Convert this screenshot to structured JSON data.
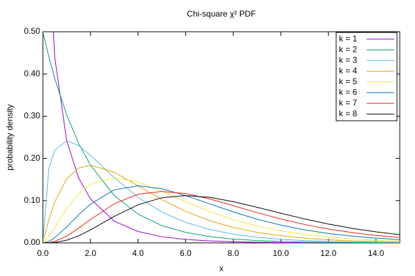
{
  "chart_data": {
    "type": "line",
    "title": "Chi-square χ² PDF",
    "x_label": "x",
    "y_label": "probability density",
    "x": [
      0,
      0.25,
      0.5,
      1,
      1.5,
      2,
      3,
      4,
      5,
      6,
      7,
      8,
      9,
      10,
      11,
      12,
      13,
      14,
      15
    ],
    "series": [
      {
        "name": "k = 1",
        "color": "#9400d3",
        "values": [
          null,
          0.704,
          0.439,
          0.242,
          0.154,
          0.104,
          0.0514,
          0.027,
          0.0146,
          0.0081,
          0.0046,
          0.0026,
          0.0015,
          0.0009,
          0.0005,
          0.0003,
          0.0002,
          0.0001,
          0.0001
        ]
      },
      {
        "name": "k = 2",
        "color": "#009e73",
        "values": [
          0.5,
          0.441,
          0.389,
          0.303,
          0.236,
          0.184,
          0.112,
          0.068,
          0.041,
          0.025,
          0.015,
          0.009,
          0.0056,
          0.0034,
          0.002,
          0.0012,
          0.0008,
          0.0005,
          0.0003
        ]
      },
      {
        "name": "k = 3",
        "color": "#56b4e9",
        "values": [
          0,
          0.1765,
          0.2197,
          0.242,
          0.2308,
          0.2076,
          0.1545,
          0.108,
          0.073,
          0.0487,
          0.0319,
          0.0207,
          0.0133,
          0.0085,
          0.0054,
          0.0034,
          0.0022,
          0.0014,
          0.0009
        ]
      },
      {
        "name": "k = 4",
        "color": "#e69f00",
        "values": [
          0,
          0.0552,
          0.0974,
          0.1516,
          0.1772,
          0.1839,
          0.1673,
          0.1353,
          0.1026,
          0.0747,
          0.0529,
          0.0366,
          0.025,
          0.0169,
          0.0112,
          0.0074,
          0.0049,
          0.0032,
          0.0021
        ]
      },
      {
        "name": "k = 5",
        "color": "#f0e442",
        "values": [
          0,
          0.0147,
          0.0366,
          0.0807,
          0.1154,
          0.1384,
          0.1545,
          0.144,
          0.1217,
          0.0974,
          0.0744,
          0.0552,
          0.0399,
          0.0283,
          0.0198,
          0.0137,
          0.0094,
          0.0063,
          0.0043
        ]
      },
      {
        "name": "k = 6",
        "color": "#0072b2",
        "values": [
          0,
          0.0035,
          0.0122,
          0.0379,
          0.0664,
          0.092,
          0.1255,
          0.1353,
          0.1283,
          0.112,
          0.0926,
          0.0733,
          0.0562,
          0.0421,
          0.0309,
          0.0223,
          0.0159,
          0.0112,
          0.0078
        ]
      },
      {
        "name": "k = 7",
        "color": "#e51e10",
        "values": [
          0,
          0.0007,
          0.0037,
          0.0161,
          0.0346,
          0.0554,
          0.0927,
          0.1152,
          0.1217,
          0.1169,
          0.1042,
          0.0883,
          0.0718,
          0.0566,
          0.0436,
          0.0329,
          0.0244,
          0.0176,
          0.0129
        ]
      },
      {
        "name": "k = 8",
        "color": "#000000",
        "values": [
          0,
          0.0001,
          0.001,
          0.0063,
          0.0166,
          0.0307,
          0.0628,
          0.0902,
          0.1069,
          0.112,
          0.108,
          0.0977,
          0.0843,
          0.0702,
          0.0567,
          0.0446,
          0.0344,
          0.0261,
          0.0195
        ]
      }
    ],
    "xlim": [
      0,
      15
    ],
    "ylim": [
      0,
      0.5
    ],
    "xticks": [
      {
        "value": 0,
        "label": "0.0"
      },
      {
        "value": 2,
        "label": "2.0"
      },
      {
        "value": 4,
        "label": "4.0"
      },
      {
        "value": 6,
        "label": "6.0"
      },
      {
        "value": 8,
        "label": "8.0"
      },
      {
        "value": 10,
        "label": "10.0"
      },
      {
        "value": 12,
        "label": "12.0"
      },
      {
        "value": 14,
        "label": "14.0"
      }
    ],
    "yticks": [
      {
        "value": 0,
        "label": "0.00"
      },
      {
        "value": 0.1,
        "label": "0.10"
      },
      {
        "value": 0.2,
        "label": "0.20"
      },
      {
        "value": 0.3,
        "label": "0.30"
      },
      {
        "value": 0.4,
        "label": "0.40"
      },
      {
        "value": 0.5,
        "label": "0.50"
      }
    ],
    "legend": "top right"
  }
}
